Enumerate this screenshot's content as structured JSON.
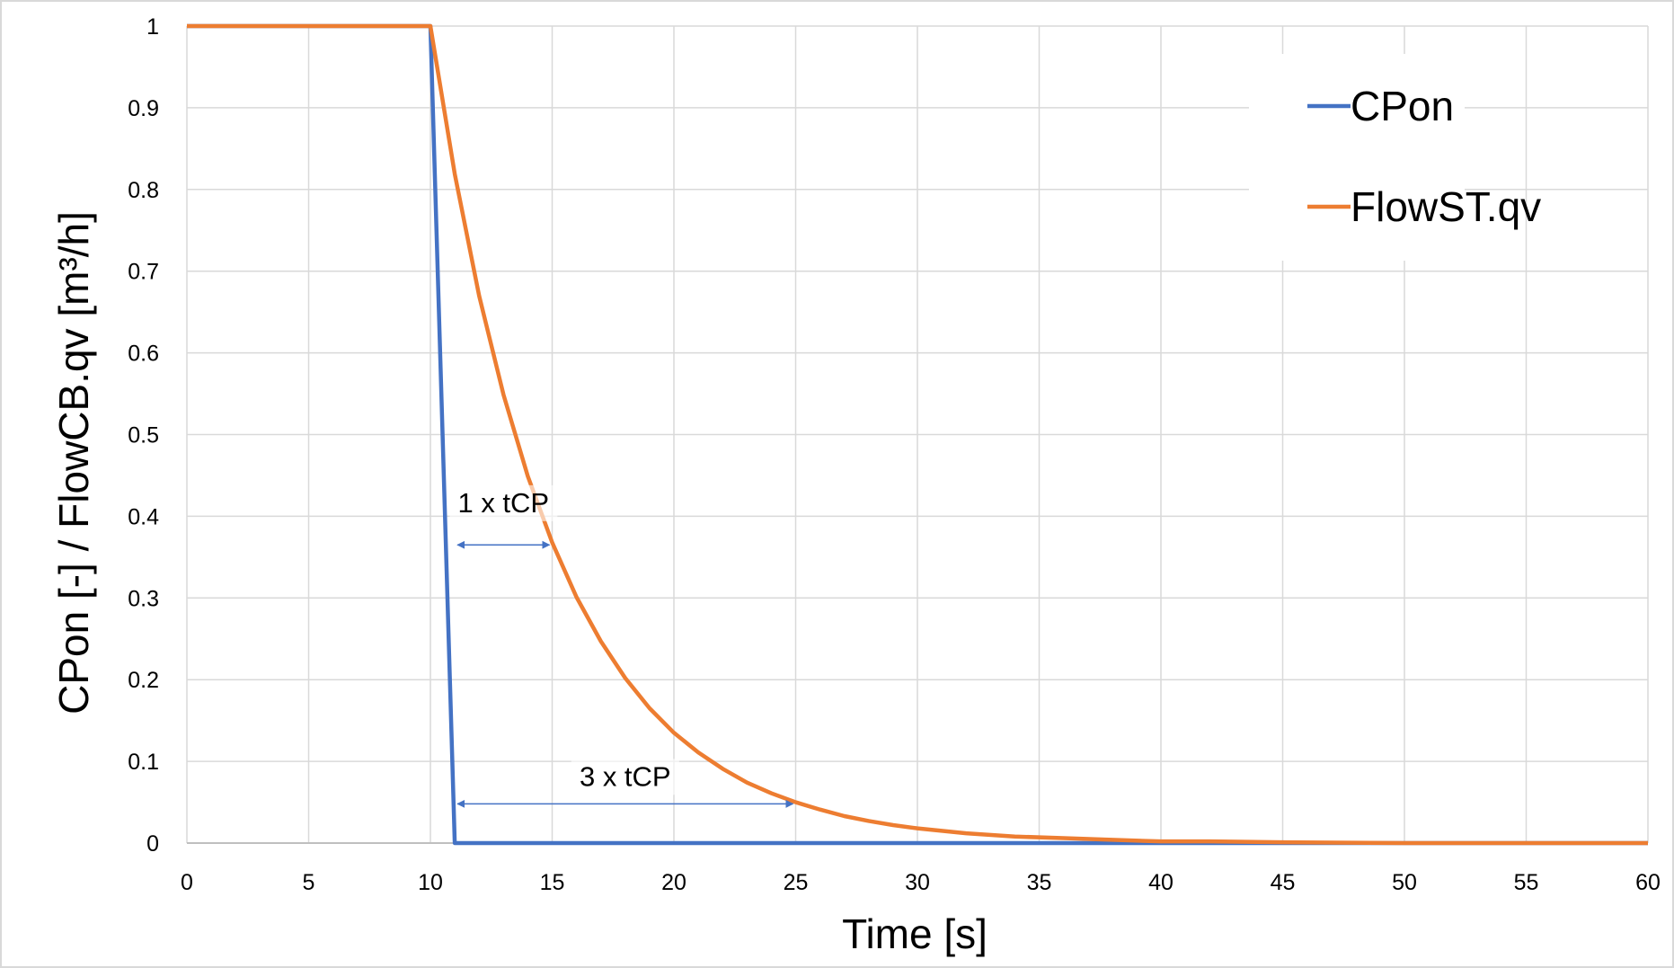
{
  "chart_data": {
    "type": "line",
    "xlabel": "Time [s]",
    "ylabel": "CPon [-] / FlowCB.qv [m³/h]",
    "xlim": [
      0,
      60
    ],
    "ylim": [
      0,
      1
    ],
    "x_ticks": [
      0,
      5,
      10,
      15,
      20,
      25,
      30,
      35,
      40,
      45,
      50,
      55,
      60
    ],
    "y_ticks": [
      0,
      0.1,
      0.2,
      0.3,
      0.4,
      0.5,
      0.6,
      0.7,
      0.8,
      0.9,
      1
    ],
    "x_tick_labels": [
      "0",
      "5",
      "10",
      "15",
      "20",
      "25",
      "30",
      "35",
      "40",
      "45",
      "50",
      "55",
      "60"
    ],
    "y_tick_labels": [
      "0",
      "0.1",
      "0.2",
      "0.3",
      "0.4",
      "0.5",
      "0.6",
      "0.7",
      "0.8",
      "0.9",
      "1"
    ],
    "grid": true,
    "legend_position": "top-right",
    "series": [
      {
        "name": "CPon",
        "color": "#4472C4",
        "x": [
          0,
          10,
          11,
          60
        ],
        "y": [
          1,
          1,
          0,
          0
        ]
      },
      {
        "name": "FlowST.qv",
        "color": "#ED7D31",
        "x": [
          0,
          10,
          11,
          12,
          13,
          14,
          15,
          16,
          17,
          18,
          19,
          20,
          21,
          22,
          23,
          24,
          25,
          26,
          27,
          28,
          29,
          30,
          32,
          34,
          36,
          38,
          40,
          42,
          45,
          50,
          55,
          60
        ],
        "y": [
          1,
          1,
          0.819,
          0.67,
          0.549,
          0.449,
          0.368,
          0.301,
          0.247,
          0.202,
          0.165,
          0.135,
          0.111,
          0.091,
          0.074,
          0.061,
          0.05,
          0.041,
          0.033,
          0.027,
          0.022,
          0.018,
          0.012,
          0.008,
          0.006,
          0.004,
          0.002,
          0.002,
          0.001,
          0,
          0,
          0
        ]
      }
    ],
    "annotations": [
      {
        "text": "1 x tCP",
        "x_start": 11,
        "x_end": 15,
        "y": 0.365,
        "label_y": 0.405
      },
      {
        "text": "3 x tCP",
        "x_start": 11,
        "x_end": 25,
        "y": 0.048,
        "label_y": 0.07
      }
    ]
  }
}
